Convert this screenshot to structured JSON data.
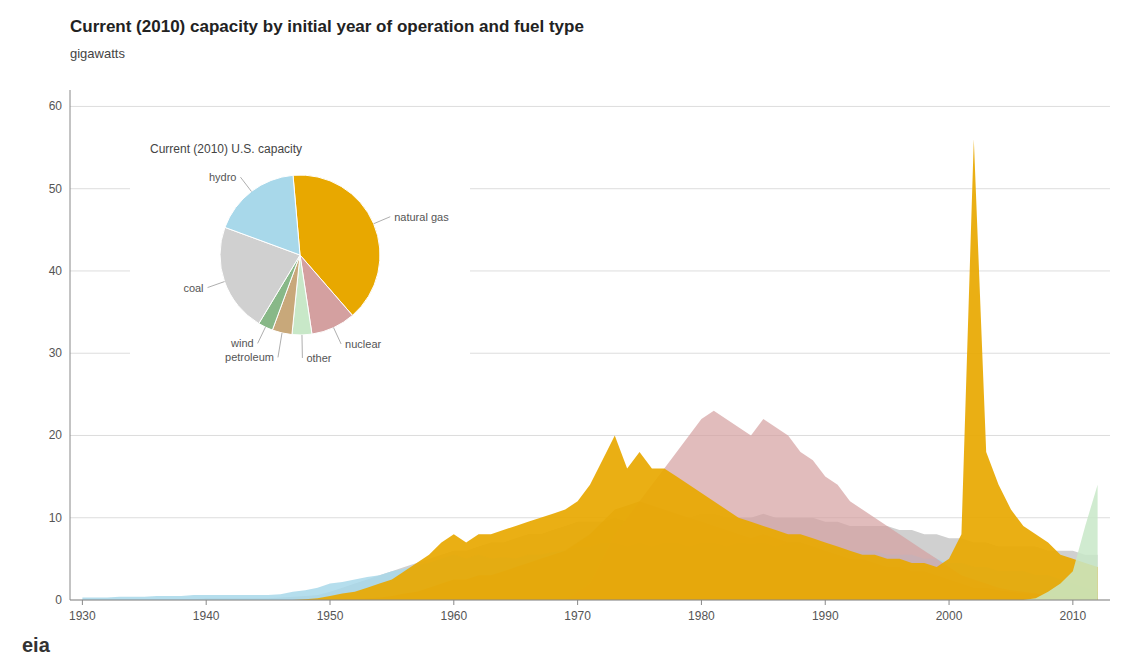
{
  "chart_data": [
    {
      "type": "area",
      "title": "Current (2010) capacity by initial year of operation and fuel type",
      "subtitle": "gigawatts",
      "stacked": false,
      "grid": true,
      "x": [
        1930,
        1931,
        1932,
        1933,
        1934,
        1935,
        1936,
        1937,
        1938,
        1939,
        1940,
        1941,
        1942,
        1943,
        1944,
        1945,
        1946,
        1947,
        1948,
        1949,
        1950,
        1951,
        1952,
        1953,
        1954,
        1955,
        1956,
        1957,
        1958,
        1959,
        1960,
        1961,
        1962,
        1963,
        1964,
        1965,
        1966,
        1967,
        1968,
        1969,
        1970,
        1971,
        1972,
        1973,
        1974,
        1975,
        1976,
        1977,
        1978,
        1979,
        1980,
        1981,
        1982,
        1983,
        1984,
        1985,
        1986,
        1987,
        1988,
        1989,
        1990,
        1991,
        1992,
        1993,
        1994,
        1995,
        1996,
        1997,
        1998,
        1999,
        2000,
        2001,
        2002,
        2003,
        2004,
        2005,
        2006,
        2007,
        2008,
        2009,
        2010,
        2011,
        2012
      ],
      "series": [
        {
          "color": "#d0d0d0",
          "values": [
            0.1,
            0.1,
            0.1,
            0.1,
            0.1,
            0.1,
            0.1,
            0.1,
            0.1,
            0.1,
            0.2,
            0.2,
            0.2,
            0.2,
            0.2,
            0.2,
            0.3,
            0.4,
            0.5,
            0.6,
            1.0,
            1.5,
            2.0,
            2.5,
            3.0,
            3.5,
            4.0,
            4.5,
            5.0,
            5.5,
            6.0,
            6.0,
            6.5,
            7.0,
            7.0,
            7.5,
            8.0,
            8.0,
            8.5,
            9.0,
            9.5,
            9.5,
            9.5,
            10.0,
            9.5,
            9.5,
            9.5,
            9.5,
            10.0,
            10.0,
            10.5,
            10.5,
            10.0,
            10.0,
            10.0,
            10.5,
            10.0,
            10.0,
            10.0,
            10.0,
            9.5,
            9.5,
            9.0,
            9.0,
            9.0,
            9.0,
            8.5,
            8.5,
            8.0,
            8.0,
            7.5,
            7.5,
            7.0,
            7.0,
            6.5,
            6.5,
            6.5,
            6.5,
            6.0,
            6.0,
            6.0,
            5.5,
            5.5
          ]
        },
        {
          "color": "#a8d8ea",
          "values": [
            0.3,
            0.3,
            0.3,
            0.4,
            0.4,
            0.4,
            0.5,
            0.5,
            0.5,
            0.6,
            0.6,
            0.6,
            0.6,
            0.6,
            0.6,
            0.6,
            0.7,
            1.0,
            1.2,
            1.5,
            2.0,
            2.2,
            2.5,
            2.8,
            3.0,
            3.5,
            3.8,
            4.2,
            4.5,
            5.0,
            5.5,
            5.0,
            5.5,
            5.0,
            5.2,
            5.0,
            5.5,
            5.5,
            5.8,
            6.0,
            6.5,
            6.5,
            7.0,
            7.0,
            6.5,
            7.0,
            6.5,
            7.0,
            7.0,
            6.5,
            7.0,
            7.0,
            6.5,
            7.0,
            6.8,
            7.0,
            6.5,
            7.0,
            7.0,
            6.5,
            6.5,
            6.5,
            6.0,
            6.0,
            6.0,
            5.5,
            5.5,
            5.5,
            5.0,
            5.0,
            4.5,
            4.5,
            4.0,
            4.0,
            3.5,
            3.5,
            3.5,
            3.0,
            3.0,
            2.5,
            2.0,
            1.5,
            1.0
          ]
        },
        {
          "color": "#c8a87a",
          "values": [
            0.0,
            0.0,
            0.0,
            0.0,
            0.0,
            0.0,
            0.0,
            0.0,
            0.0,
            0.0,
            0.0,
            0.0,
            0.0,
            0.0,
            0.0,
            0.0,
            0.0,
            0.0,
            0.0,
            0.0,
            0.0,
            0.1,
            0.1,
            0.2,
            0.3,
            0.5,
            0.8,
            1.0,
            1.5,
            2.0,
            2.5,
            2.5,
            3.0,
            3.0,
            3.5,
            4.0,
            4.5,
            5.0,
            5.5,
            6.0,
            7.0,
            8.0,
            9.5,
            11.0,
            11.5,
            12.0,
            11.5,
            11.0,
            10.5,
            10.0,
            9.5,
            9.0,
            8.5,
            8.0,
            7.5,
            8.0,
            7.5,
            7.0,
            7.0,
            6.5,
            6.0,
            5.5,
            5.0,
            5.0,
            4.5,
            4.0,
            4.0,
            3.5,
            3.5,
            3.0,
            2.5,
            2.0,
            1.5,
            1.5,
            1.2,
            1.0,
            0.8,
            0.8,
            0.5,
            0.4,
            0.3,
            0.2,
            0.2
          ]
        },
        {
          "color": "#d4a0a0",
          "values": [
            0.0,
            0.0,
            0.0,
            0.0,
            0.0,
            0.0,
            0.0,
            0.0,
            0.0,
            0.0,
            0.0,
            0.0,
            0.0,
            0.0,
            0.0,
            0.0,
            0.0,
            0.0,
            0.0,
            0.0,
            0.0,
            0.0,
            0.0,
            0.0,
            0.0,
            0.0,
            0.0,
            0.0,
            0.0,
            0.0,
            0.0,
            0.0,
            0.0,
            0.0,
            0.0,
            0.0,
            0.0,
            0.0,
            0.0,
            0.0,
            1.0,
            2.0,
            5.0,
            8.0,
            10.0,
            12.0,
            14.0,
            16.0,
            18.0,
            20.0,
            22.0,
            23.0,
            22.0,
            21.0,
            20.0,
            22.0,
            21.0,
            20.0,
            18.0,
            17.0,
            15.0,
            14.0,
            12.0,
            11.0,
            10.0,
            9.0,
            8.0,
            7.0,
            6.0,
            5.0,
            4.0,
            3.0,
            2.5,
            2.0,
            1.5,
            1.2,
            1.0,
            0.8,
            0.5,
            0.3,
            0.2,
            0.1,
            0.1
          ]
        },
        {
          "color": "#e8a800",
          "values": [
            0.0,
            0.0,
            0.0,
            0.0,
            0.0,
            0.0,
            0.0,
            0.0,
            0.0,
            0.0,
            0.0,
            0.0,
            0.0,
            0.0,
            0.0,
            0.0,
            0.0,
            0.0,
            0.1,
            0.2,
            0.5,
            0.8,
            1.0,
            1.5,
            2.0,
            2.5,
            3.5,
            4.5,
            5.5,
            7.0,
            8.0,
            7.0,
            8.0,
            8.0,
            8.5,
            9.0,
            9.5,
            10.0,
            10.5,
            11.0,
            12.0,
            14.0,
            17.0,
            20.0,
            16.0,
            18.0,
            16.0,
            16.0,
            15.0,
            14.0,
            13.0,
            12.0,
            11.0,
            10.0,
            9.5,
            9.0,
            8.5,
            8.0,
            8.0,
            7.5,
            7.0,
            6.5,
            6.0,
            5.5,
            5.5,
            5.0,
            5.0,
            4.5,
            4.5,
            4.0,
            5.0,
            8.0,
            56.0,
            18.0,
            14.0,
            11.0,
            9.0,
            8.0,
            7.0,
            5.5,
            5.0,
            4.5,
            4.0
          ]
        },
        {
          "color": "#c8e8c8",
          "values": [
            0.0,
            0.0,
            0.0,
            0.0,
            0.0,
            0.0,
            0.0,
            0.0,
            0.0,
            0.0,
            0.0,
            0.0,
            0.0,
            0.0,
            0.0,
            0.0,
            0.0,
            0.0,
            0.0,
            0.0,
            0.0,
            0.0,
            0.0,
            0.0,
            0.0,
            0.0,
            0.0,
            0.0,
            0.0,
            0.0,
            0.0,
            0.0,
            0.0,
            0.0,
            0.0,
            0.0,
            0.0,
            0.0,
            0.0,
            0.0,
            0.0,
            0.0,
            0.0,
            0.0,
            0.0,
            0.0,
            0.0,
            0.0,
            0.0,
            0.0,
            0.0,
            0.0,
            0.0,
            0.0,
            0.0,
            0.0,
            0.0,
            0.0,
            0.0,
            0.0,
            0.0,
            0.0,
            0.0,
            0.0,
            0.0,
            0.0,
            0.0,
            0.0,
            0.0,
            0.0,
            0.0,
            0.0,
            0.0,
            0.0,
            0.0,
            0.0,
            0.0,
            0.2,
            1.0,
            2.0,
            3.5,
            9.0,
            14.0
          ]
        }
      ],
      "xlim": [
        1929,
        2013
      ],
      "ylim": [
        0,
        62
      ],
      "xticks": [
        1930,
        1940,
        1950,
        1960,
        1970,
        1980,
        1990,
        2000,
        2010
      ],
      "yticks": [
        0,
        10,
        20,
        30,
        40,
        50,
        60
      ],
      "annotations": [
        "eia"
      ]
    },
    {
      "type": "pie",
      "title": "Current (2010) U.S. capacity",
      "categories": [
        "natural gas",
        "nuclear",
        "other",
        "petroleum",
        "wind",
        "coal",
        "hydro"
      ],
      "values": [
        40,
        9,
        4,
        4,
        3,
        22,
        18
      ],
      "colors": [
        "#e8a800",
        "#d4a0a0",
        "#c8e8c8",
        "#c8a87a",
        "#88b888",
        "#d0d0d0",
        "#a8d8ea"
      ]
    }
  ]
}
